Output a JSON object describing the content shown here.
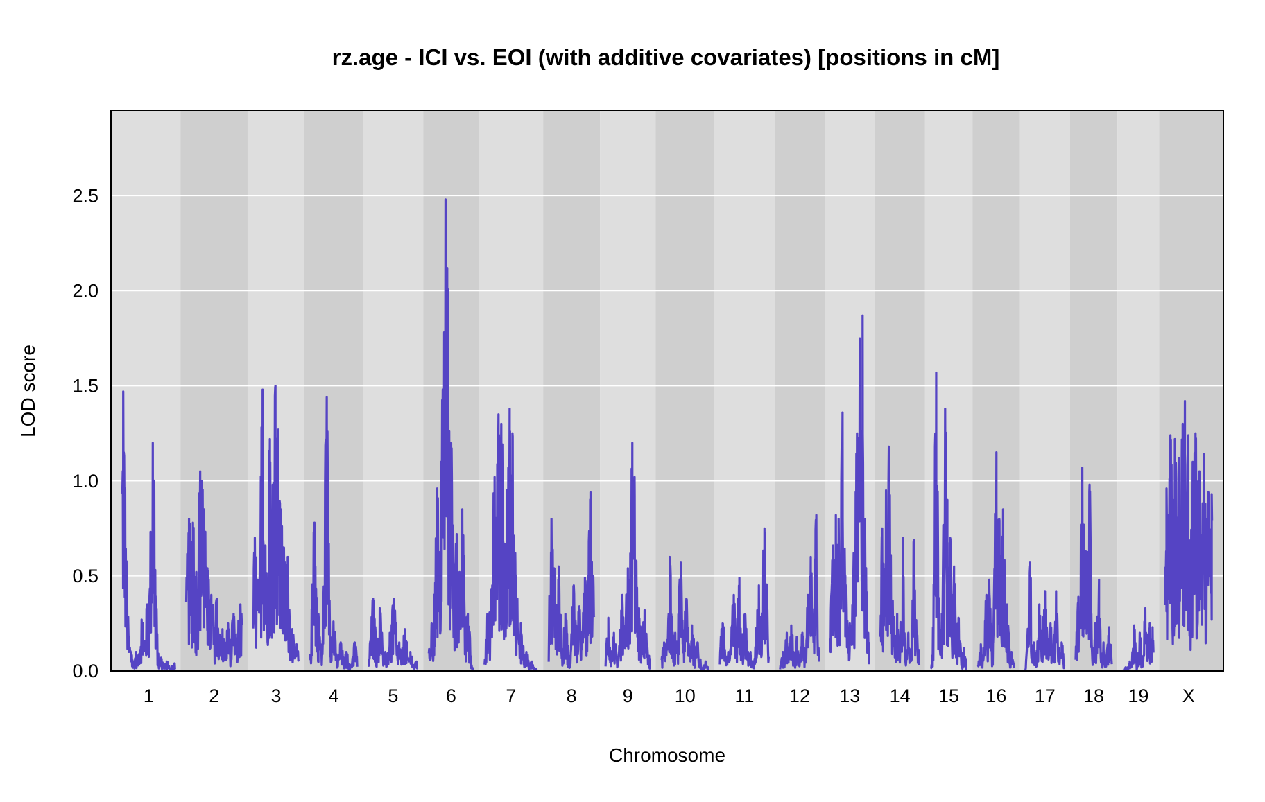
{
  "chart_data": {
    "type": "line",
    "title": "rz.age - ICI vs. EOI (with additive covariates) [positions in cM]",
    "xlabel": "Chromosome",
    "ylabel": "LOD score",
    "ylim": [
      0,
      2.95
    ],
    "yticks": [
      "0.0",
      "0.5",
      "1.0",
      "1.5",
      "2.0",
      "2.5"
    ],
    "grid": "horizontal",
    "background_bands": [
      "#dedede",
      "#cfcfcf"
    ],
    "line_color": "#5544c4",
    "series": [
      {
        "chromosomes": [
          {
            "label": "1",
            "length": 95,
            "peaks": [
              [
                2,
                1.47
              ],
              [
                3,
                1.15
              ],
              [
                5,
                0.72
              ],
              [
                12,
                0.18
              ],
              [
                25,
                0.1
              ],
              [
                35,
                0.27
              ],
              [
                45,
                0.35
              ],
              [
                55,
                1.2
              ],
              [
                60,
                0.12
              ],
              [
                70,
                0.07
              ],
              [
                80,
                0.05
              ],
              [
                94,
                0.04
              ]
            ]
          },
          {
            "label": "2",
            "length": 100,
            "peaks": [
              [
                5,
                0.8
              ],
              [
                12,
                0.78
              ],
              [
                18,
                0.52
              ],
              [
                25,
                1.05
              ],
              [
                28,
                1.0
              ],
              [
                32,
                0.85
              ],
              [
                38,
                0.54
              ],
              [
                45,
                0.4
              ],
              [
                55,
                0.38
              ],
              [
                65,
                0.22
              ],
              [
                75,
                0.25
              ],
              [
                85,
                0.3
              ],
              [
                97,
                0.35
              ]
            ]
          },
          {
            "label": "3",
            "length": 82,
            "peaks": [
              [
                3,
                0.7
              ],
              [
                8,
                0.48
              ],
              [
                17,
                1.48
              ],
              [
                22,
                0.66
              ],
              [
                30,
                1.22
              ],
              [
                35,
                0.98
              ],
              [
                40,
                1.5
              ],
              [
                45,
                1.27
              ],
              [
                50,
                0.85
              ],
              [
                55,
                0.65
              ],
              [
                62,
                0.6
              ],
              [
                70,
                0.22
              ],
              [
                78,
                0.14
              ]
            ]
          },
          {
            "label": "4",
            "length": 85,
            "peaks": [
              [
                8,
                0.78
              ],
              [
                15,
                0.3
              ],
              [
                30,
                1.44
              ],
              [
                35,
                0.37
              ],
              [
                42,
                0.26
              ],
              [
                55,
                0.15
              ],
              [
                65,
                0.1
              ],
              [
                80,
                0.15
              ]
            ]
          },
          {
            "label": "5",
            "length": 88,
            "peaks": [
              [
                8,
                0.38
              ],
              [
                20,
                0.33
              ],
              [
                30,
                0.1
              ],
              [
                38,
                0.2
              ],
              [
                45,
                0.38
              ],
              [
                55,
                0.15
              ],
              [
                65,
                0.22
              ],
              [
                75,
                0.1
              ],
              [
                86,
                0.05
              ]
            ]
          },
          {
            "label": "6",
            "length": 80,
            "peaks": [
              [
                5,
                0.25
              ],
              [
                15,
                0.96
              ],
              [
                20,
                0.6
              ],
              [
                25,
                1.48
              ],
              [
                30,
                2.48
              ],
              [
                33,
                2.12
              ],
              [
                36,
                1.22
              ],
              [
                40,
                1.2
              ],
              [
                50,
                0.72
              ],
              [
                55,
                0.52
              ],
              [
                60,
                0.85
              ],
              [
                70,
                0.3
              ]
            ]
          },
          {
            "label": "7",
            "length": 95,
            "peaks": [
              [
                5,
                0.3
              ],
              [
                12,
                0.42
              ],
              [
                18,
                1.02
              ],
              [
                25,
                1.35
              ],
              [
                30,
                1.3
              ],
              [
                40,
                0.95
              ],
              [
                45,
                1.38
              ],
              [
                50,
                1.25
              ],
              [
                55,
                0.62
              ],
              [
                65,
                0.25
              ],
              [
                75,
                0.1
              ],
              [
                85,
                0.05
              ]
            ]
          },
          {
            "label": "8",
            "length": 82,
            "peaks": [
              [
                5,
                0.8
              ],
              [
                10,
                0.54
              ],
              [
                18,
                0.55
              ],
              [
                30,
                0.3
              ],
              [
                45,
                0.45
              ],
              [
                55,
                0.34
              ],
              [
                65,
                0.49
              ],
              [
                75,
                0.94
              ],
              [
                80,
                0.5
              ]
            ]
          },
          {
            "label": "9",
            "length": 80,
            "peaks": [
              [
                5,
                0.28
              ],
              [
                15,
                0.2
              ],
              [
                30,
                0.4
              ],
              [
                40,
                0.54
              ],
              [
                48,
                1.2
              ],
              [
                52,
                1.02
              ],
              [
                60,
                0.33
              ],
              [
                70,
                0.32
              ],
              [
                78,
                0.08
              ]
            ]
          },
          {
            "label": "10",
            "length": 85,
            "peaks": [
              [
                5,
                0.15
              ],
              [
                15,
                0.6
              ],
              [
                25,
                0.2
              ],
              [
                35,
                0.57
              ],
              [
                45,
                0.38
              ],
              [
                55,
                0.24
              ],
              [
                65,
                0.15
              ],
              [
                80,
                0.05
              ]
            ]
          },
          {
            "label": "11",
            "length": 88,
            "peaks": [
              [
                5,
                0.25
              ],
              [
                15,
                0.1
              ],
              [
                25,
                0.4
              ],
              [
                35,
                0.49
              ],
              [
                45,
                0.3
              ],
              [
                55,
                0.1
              ],
              [
                70,
                0.45
              ],
              [
                80,
                0.75
              ]
            ]
          },
          {
            "label": "12",
            "length": 70,
            "peaks": [
              [
                5,
                0.1
              ],
              [
                12,
                0.2
              ],
              [
                20,
                0.24
              ],
              [
                30,
                0.18
              ],
              [
                40,
                0.2
              ],
              [
                50,
                0.4
              ],
              [
                55,
                0.6
              ],
              [
                65,
                0.82
              ]
            ]
          },
          {
            "label": "13",
            "length": 70,
            "peaks": [
              [
                5,
                0.66
              ],
              [
                10,
                0.82
              ],
              [
                15,
                0.8
              ],
              [
                22,
                1.36
              ],
              [
                27,
                0.5
              ],
              [
                35,
                0.25
              ],
              [
                42,
                0.62
              ],
              [
                48,
                1.25
              ],
              [
                53,
                1.75
              ],
              [
                58,
                1.87
              ],
              [
                62,
                0.8
              ],
              [
                68,
                0.2
              ]
            ]
          },
          {
            "label": "14",
            "length": 70,
            "peaks": [
              [
                3,
                0.75
              ],
              [
                10,
                0.95
              ],
              [
                15,
                1.18
              ],
              [
                22,
                0.37
              ],
              [
                30,
                0.3
              ],
              [
                40,
                0.7
              ],
              [
                50,
                0.2
              ],
              [
                60,
                0.69
              ],
              [
                65,
                0.2
              ]
            ]
          },
          {
            "label": "15",
            "length": 65,
            "peaks": [
              [
                3,
                0.02
              ],
              [
                10,
                1.57
              ],
              [
                20,
                0.3
              ],
              [
                26,
                1.38
              ],
              [
                30,
                0.9
              ],
              [
                35,
                0.7
              ],
              [
                42,
                0.55
              ],
              [
                50,
                0.28
              ],
              [
                60,
                0.12
              ]
            ]
          },
          {
            "label": "16",
            "length": 65,
            "peaks": [
              [
                5,
                0.14
              ],
              [
                15,
                0.4
              ],
              [
                20,
                0.48
              ],
              [
                27,
                0.2
              ],
              [
                33,
                1.15
              ],
              [
                38,
                0.8
              ],
              [
                45,
                0.85
              ],
              [
                52,
                0.35
              ],
              [
                60,
                0.1
              ]
            ]
          },
          {
            "label": "17",
            "length": 70,
            "peaks": [
              [
                8,
                0.57
              ],
              [
                15,
                0.15
              ],
              [
                25,
                0.35
              ],
              [
                35,
                0.42
              ],
              [
                45,
                0.25
              ],
              [
                55,
                0.42
              ],
              [
                65,
                0.15
              ]
            ]
          },
          {
            "label": "18",
            "length": 65,
            "peaks": [
              [
                5,
                0.39
              ],
              [
                12,
                1.07
              ],
              [
                18,
                0.63
              ],
              [
                25,
                0.98
              ],
              [
                35,
                0.25
              ],
              [
                42,
                0.48
              ],
              [
                50,
                0.15
              ],
              [
                60,
                0.23
              ]
            ]
          },
          {
            "label": "19",
            "length": 55,
            "peaks": [
              [
                5,
                0.02
              ],
              [
                12,
                0.05
              ],
              [
                20,
                0.24
              ],
              [
                30,
                0.2
              ],
              [
                40,
                0.33
              ],
              [
                48,
                0.25
              ],
              [
                53,
                0.23
              ]
            ]
          },
          {
            "label": "X",
            "length": 85,
            "peaks": [
              [
                3,
                0.96
              ],
              [
                10,
                1.24
              ],
              [
                18,
                1.22
              ],
              [
                25,
                1.12
              ],
              [
                32,
                1.3
              ],
              [
                36,
                1.42
              ],
              [
                42,
                1.24
              ],
              [
                50,
                1.1
              ],
              [
                55,
                1.25
              ],
              [
                62,
                1.05
              ],
              [
                70,
                1.14
              ],
              [
                78,
                0.94
              ],
              [
                84,
                0.93
              ]
            ]
          }
        ]
      }
    ]
  }
}
